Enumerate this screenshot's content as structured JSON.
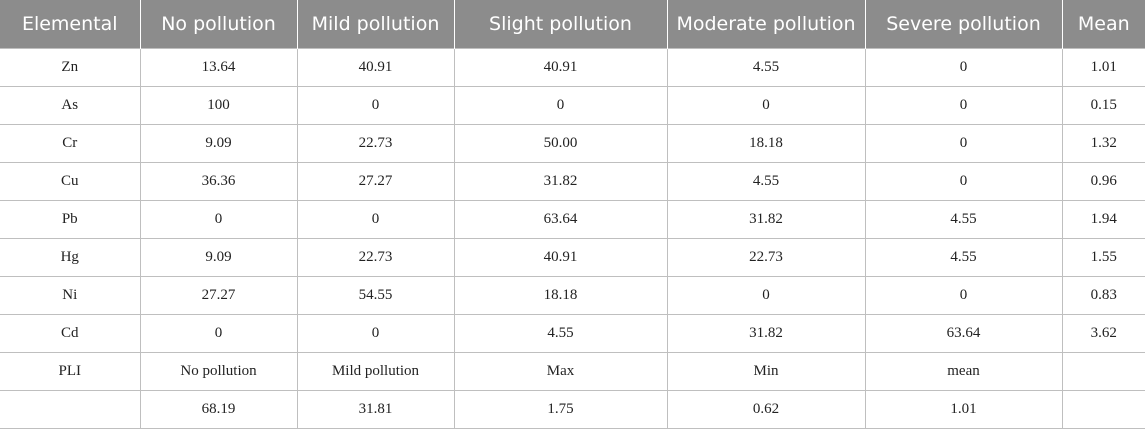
{
  "table": {
    "headers": [
      "Elemental",
      "No pollution",
      "Mild pollution",
      "Slight pollution",
      "Moderate pollution",
      "Severe pollution",
      "Mean"
    ],
    "rows": [
      [
        "Zn",
        "13.64",
        "40.91",
        "40.91",
        "4.55",
        "0",
        "1.01"
      ],
      [
        "As",
        "100",
        "0",
        "0",
        "0",
        "0",
        "0.15"
      ],
      [
        "Cr",
        "9.09",
        "22.73",
        "50.00",
        "18.18",
        "0",
        "1.32"
      ],
      [
        "Cu",
        "36.36",
        "27.27",
        "31.82",
        "4.55",
        "0",
        "0.96"
      ],
      [
        "Pb",
        "0",
        "0",
        "63.64",
        "31.82",
        "4.55",
        "1.94"
      ],
      [
        "Hg",
        "9.09",
        "22.73",
        "40.91",
        "22.73",
        "4.55",
        "1.55"
      ],
      [
        "Ni",
        "27.27",
        "54.55",
        "18.18",
        "0",
        "0",
        "0.83"
      ],
      [
        "Cd",
        "0",
        "0",
        "4.55",
        "31.82",
        "63.64",
        "3.62"
      ],
      [
        "PLI",
        "No pollution",
        "Mild pollution",
        "Max",
        "Min",
        "mean",
        ""
      ],
      [
        "",
        "68.19",
        "31.81",
        "1.75",
        "0.62",
        "1.01",
        ""
      ]
    ]
  }
}
